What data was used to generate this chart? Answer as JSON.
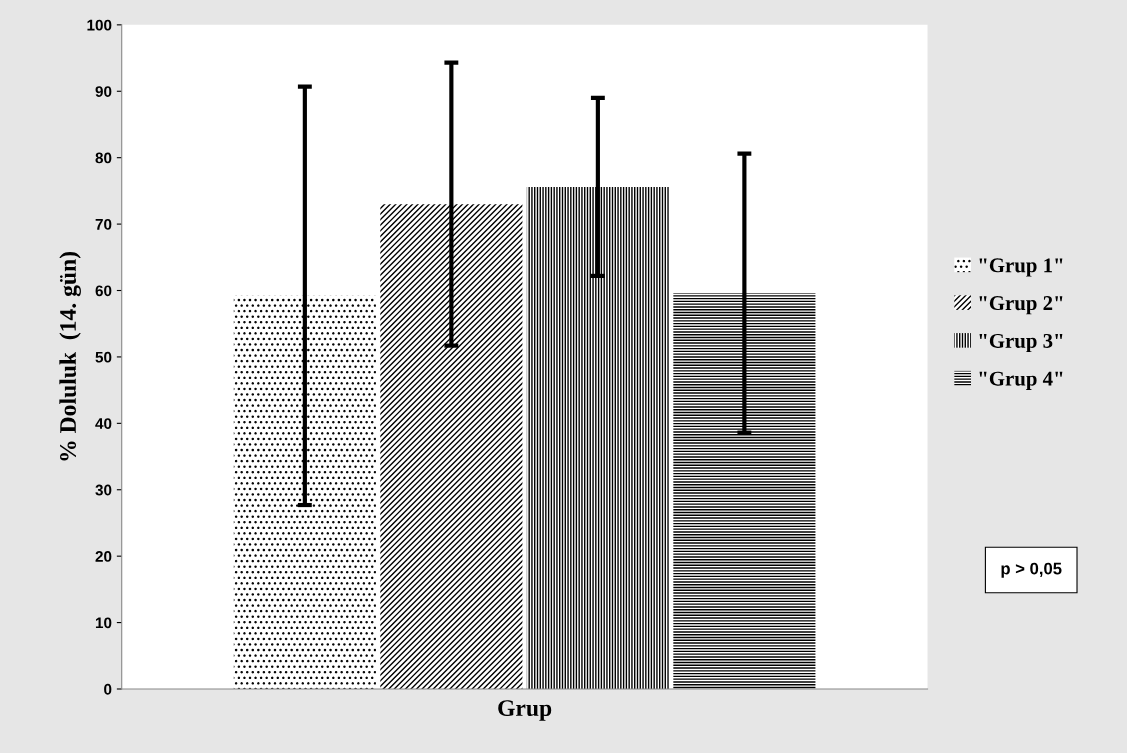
{
  "chart_data": {
    "type": "bar",
    "xlabel": "Grup",
    "ylabel": "% Doluluk  (14. gün)",
    "categories": [
      null
    ],
    "series": [
      {
        "name": "\"Grup 1\"",
        "color": "#000000",
        "values": [
          59.2
        ],
        "errors": [
          31.5
        ]
      },
      {
        "name": "\"Grup 2\"",
        "color": "#000000",
        "values": [
          73.0
        ],
        "errors": [
          21.3
        ]
      },
      {
        "name": "\"Grup 3\"",
        "color": "#000000",
        "values": [
          75.6
        ],
        "errors": [
          13.4
        ]
      },
      {
        "name": "\"Grup 4\"",
        "color": "#000000",
        "values": [
          59.6
        ],
        "errors": [
          21.0
        ]
      }
    ],
    "ylim": [
      0,
      100
    ],
    "yticks": [
      0,
      10,
      20,
      30,
      40,
      50,
      60,
      70,
      80,
      90,
      100
    ],
    "grid": false,
    "legend": "right",
    "annotations": [
      "p > 0,05"
    ]
  }
}
